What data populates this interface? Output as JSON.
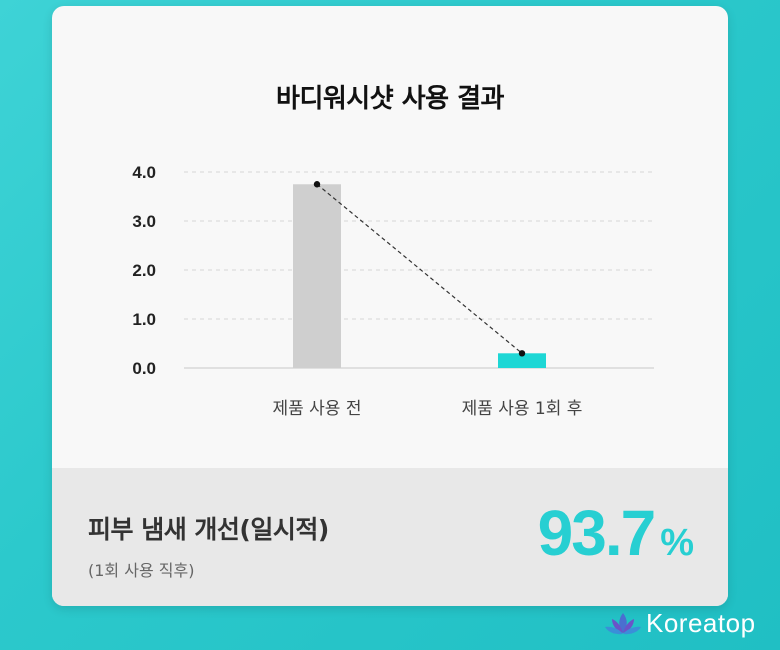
{
  "chart_data": {
    "type": "bar",
    "title": "바디워시샷 사용 결과",
    "categories": [
      "제품 사용 전",
      "제품 사용 1회 후"
    ],
    "values": [
      3.75,
      0.3
    ],
    "y_ticks": [
      "0.0",
      "1.0",
      "2.0",
      "3.0",
      "4.0"
    ],
    "ylim": [
      0,
      4
    ],
    "grid": true,
    "trend_line": "dashed",
    "bar_colors": [
      "#cfcfcf",
      "#1ed7d5"
    ]
  },
  "result": {
    "label": "피부 냄새 개선(일시적)",
    "note": "(1회 사용 직후)",
    "value": "93.7",
    "unit": "%",
    "accent_color": "#27cfd2"
  },
  "brand": {
    "name": "Koreatop",
    "logo_icon": "lotus-icon"
  }
}
